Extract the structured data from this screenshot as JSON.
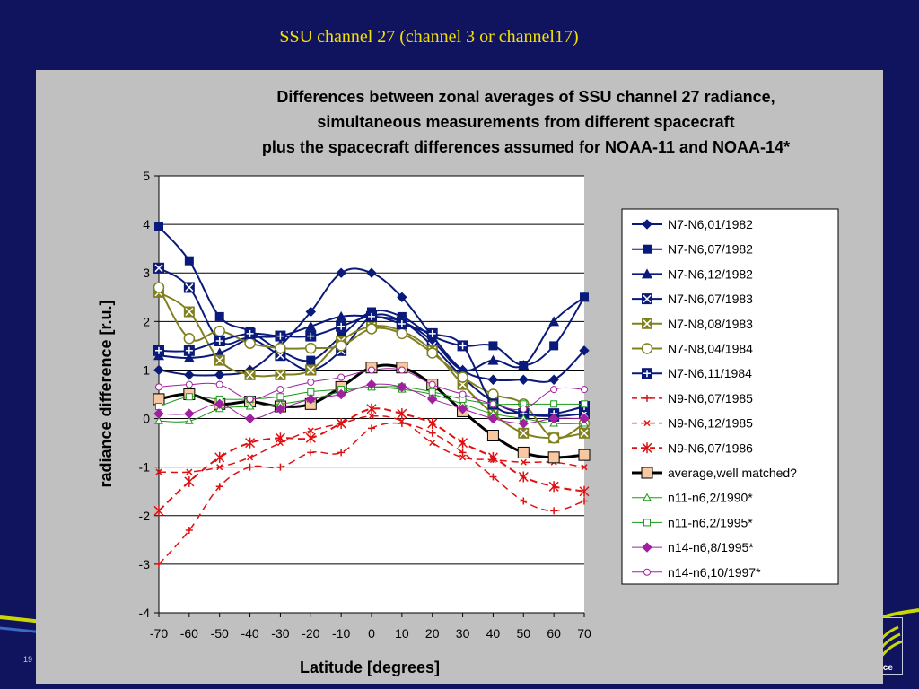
{
  "slide": {
    "title": "SSU channel 27 (channel 3 or channel17)",
    "page_number": "19",
    "logo_text": "ice"
  },
  "colors": {
    "background": "#10135e",
    "title": "#f5e100",
    "panel": "#c0c0c0",
    "plot_area": "#ffffff",
    "navy_series": "#0a1a7a",
    "olive_series": "#808020",
    "red_series": "#e01010",
    "average_fill": "#f8c8a0",
    "green_series": "#1a9a1a",
    "purple_series": "#a020a0"
  },
  "chart_data": {
    "type": "line",
    "title_lines": [
      "Differences between zonal averages of SSU channel 27 radiance,",
      "simultaneous measurements from different spacecraft",
      "plus the spacecraft differences assumed for NOAA-11 and NOAA-14*"
    ],
    "xlabel": "Latitude [degrees]",
    "ylabel": "radiance difference [r.u.]",
    "xlim": [
      -70,
      70
    ],
    "ylim": [
      -4,
      5
    ],
    "x": [
      -70,
      -60,
      -50,
      -40,
      -30,
      -20,
      -10,
      0,
      10,
      20,
      30,
      40,
      50,
      60,
      70
    ],
    "x_ticks": [
      "-70",
      "-60",
      "-50",
      "-40",
      "-30",
      "-20",
      "-10",
      "0",
      "10",
      "20",
      "30",
      "40",
      "50",
      "60",
      "70"
    ],
    "y_ticks": [
      "-4",
      "-3",
      "-2",
      "-1",
      "0",
      "1",
      "2",
      "3",
      "4",
      "5"
    ],
    "grid": "horizontal",
    "legend_position": "right",
    "series": [
      {
        "name": "N7-N6,01/1982",
        "color": "#0a1a7a",
        "marker": "diamond",
        "dash": "",
        "width": 2,
        "values": [
          1.0,
          0.9,
          0.9,
          1.0,
          1.5,
          2.2,
          3.0,
          3.0,
          2.5,
          1.7,
          1.0,
          0.8,
          0.8,
          0.8,
          1.4
        ]
      },
      {
        "name": "N7-N6,07/1982",
        "color": "#0a1a7a",
        "marker": "square",
        "dash": "",
        "width": 2,
        "values": [
          3.95,
          3.25,
          2.1,
          1.8,
          1.4,
          1.2,
          1.7,
          2.2,
          2.1,
          1.7,
          1.5,
          1.5,
          1.1,
          1.5,
          2.5
        ]
      },
      {
        "name": "N7-N6,12/1982",
        "color": "#0a1a7a",
        "marker": "triangle",
        "dash": "",
        "width": 2,
        "values": [
          1.3,
          1.25,
          1.35,
          1.65,
          1.7,
          1.9,
          2.1,
          2.1,
          2.0,
          1.6,
          1.0,
          1.2,
          1.1,
          2.0,
          2.5
        ]
      },
      {
        "name": "N7-N6,07/1983",
        "color": "#0a1a7a",
        "marker": "xbox",
        "dash": "",
        "width": 2,
        "values": [
          3.1,
          2.7,
          1.6,
          1.65,
          1.3,
          1.0,
          1.4,
          2.1,
          2.0,
          1.5,
          0.85,
          0.35,
          0.1,
          0.05,
          0.1
        ]
      },
      {
        "name": "N7-N8,08/1983",
        "color": "#808020",
        "marker": "xbox",
        "dash": "",
        "width": 2,
        "values": [
          2.6,
          2.2,
          1.2,
          0.9,
          0.9,
          1.0,
          1.6,
          1.9,
          1.8,
          1.4,
          0.7,
          0.1,
          -0.3,
          -0.4,
          -0.3
        ]
      },
      {
        "name": "N7-N8,04/1984",
        "color": "#808020",
        "marker": "circle",
        "dash": "",
        "width": 2,
        "values": [
          2.7,
          1.65,
          1.8,
          1.55,
          1.45,
          1.45,
          1.5,
          1.85,
          1.75,
          1.35,
          0.85,
          0.5,
          0.3,
          -0.4,
          -0.1
        ]
      },
      {
        "name": "N7-N6,11/1984",
        "color": "#0a1a7a",
        "marker": "plusbox",
        "dash": "",
        "width": 2,
        "values": [
          1.4,
          1.4,
          1.6,
          1.75,
          1.7,
          1.7,
          1.9,
          2.1,
          1.95,
          1.75,
          1.5,
          0.3,
          0.1,
          0.1,
          0.25
        ]
      },
      {
        "name": "N9-N6,07/1985",
        "color": "#e01010",
        "marker": "plus",
        "dash": "8 5",
        "width": 1.5,
        "values": [
          -3.0,
          -2.3,
          -1.4,
          -1.0,
          -1.0,
          -0.7,
          -0.7,
          -0.2,
          -0.1,
          -0.3,
          -0.7,
          -1.2,
          -1.7,
          -1.9,
          -1.7
        ]
      },
      {
        "name": "N9-N6,12/1985",
        "color": "#e01010",
        "marker": "x",
        "dash": "8 5",
        "width": 1.5,
        "values": [
          -1.1,
          -1.1,
          -1.0,
          -0.8,
          -0.5,
          -0.25,
          -0.1,
          0.05,
          -0.05,
          -0.5,
          -0.8,
          -0.85,
          -0.9,
          -0.9,
          -1.0
        ]
      },
      {
        "name": "N9-N6,07/1986",
        "color": "#e01010",
        "marker": "star",
        "dash": "8 5",
        "width": 2,
        "values": [
          -1.9,
          -1.3,
          -0.8,
          -0.5,
          -0.4,
          -0.4,
          -0.1,
          0.2,
          0.1,
          -0.1,
          -0.5,
          -0.8,
          -1.2,
          -1.4,
          -1.5
        ]
      },
      {
        "name": "average,well matched?",
        "color": "#000000",
        "marker": "squarefill",
        "dash": "",
        "width": 3,
        "values": [
          0.4,
          0.5,
          0.3,
          0.35,
          0.25,
          0.3,
          0.65,
          1.05,
          1.05,
          0.7,
          0.15,
          -0.35,
          -0.7,
          -0.8,
          -0.75
        ]
      },
      {
        "name": "n11-n6,2/1990*",
        "color": "#1a9a1a",
        "marker": "triangle-open",
        "dash": "",
        "width": 1,
        "values": [
          -0.05,
          -0.05,
          0.2,
          0.25,
          0.3,
          0.4,
          0.55,
          0.65,
          0.6,
          0.5,
          0.3,
          0.1,
          0.0,
          -0.1,
          -0.1
        ]
      },
      {
        "name": "n11-n6,2/1995*",
        "color": "#1a9a1a",
        "marker": "square-open",
        "dash": "",
        "width": 1,
        "values": [
          0.25,
          0.45,
          0.4,
          0.4,
          0.45,
          0.55,
          0.6,
          0.65,
          0.65,
          0.55,
          0.4,
          0.3,
          0.3,
          0.3,
          0.3
        ]
      },
      {
        "name": "n14-n6,8/1995*",
        "color": "#a020a0",
        "marker": "diamond",
        "dash": "",
        "width": 1,
        "values": [
          0.1,
          0.1,
          0.3,
          0.0,
          0.2,
          0.4,
          0.5,
          0.7,
          0.65,
          0.4,
          0.2,
          0.0,
          -0.1,
          0.0,
          0.0
        ]
      },
      {
        "name": "n14-n6,10/1997*",
        "color": "#a020a0",
        "marker": "circle-open",
        "dash": "",
        "width": 1,
        "values": [
          0.65,
          0.7,
          0.7,
          0.4,
          0.6,
          0.75,
          0.85,
          1.0,
          1.0,
          0.7,
          0.5,
          0.3,
          0.2,
          0.6,
          0.6
        ]
      }
    ]
  }
}
